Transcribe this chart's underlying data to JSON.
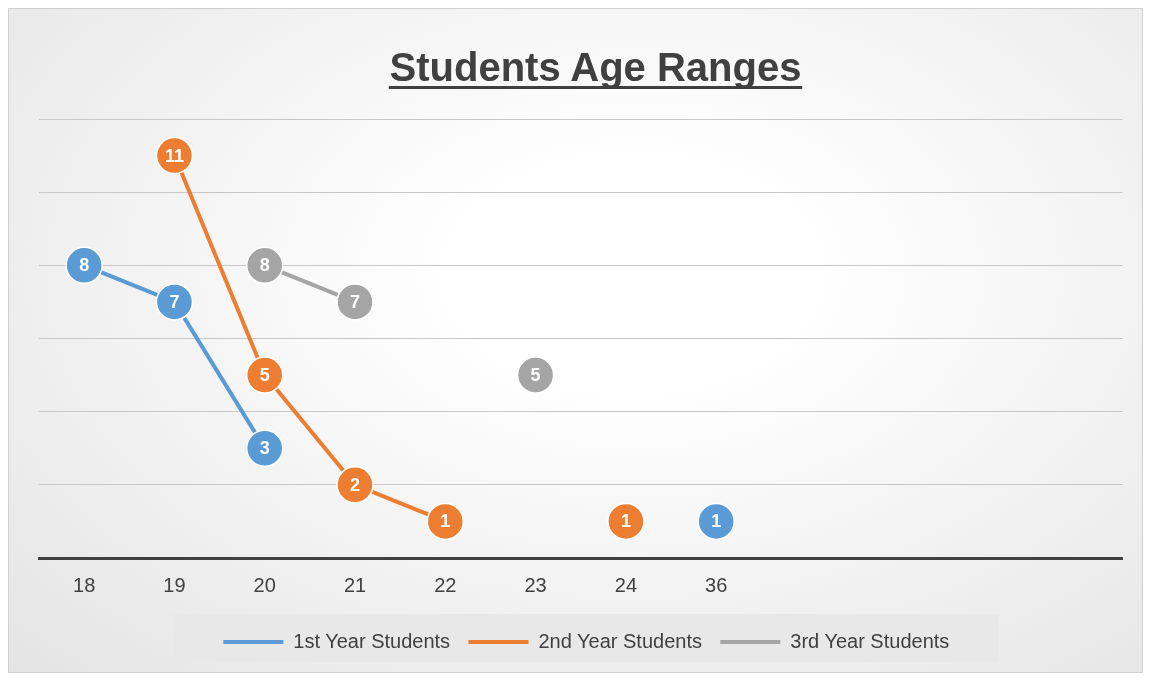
{
  "chart_data": {
    "type": "line",
    "title": "Students Age Ranges",
    "categories": [
      "18",
      "19",
      "20",
      "21",
      "22",
      "23",
      "24",
      "36",
      null,
      null,
      null,
      null
    ],
    "series": [
      {
        "name": "1st Year Students",
        "color": "#5b9bd5",
        "values": [
          8,
          7,
          3,
          null,
          null,
          null,
          null,
          1,
          null,
          null,
          null,
          null
        ]
      },
      {
        "name": "2nd Year Students",
        "color": "#ed7d31",
        "values": [
          null,
          11,
          5,
          2,
          1,
          null,
          1,
          null,
          null,
          null,
          null,
          null
        ]
      },
      {
        "name": "3rd Year Students",
        "color": "#a5a5a5",
        "values": [
          null,
          null,
          8,
          7,
          null,
          5,
          null,
          null,
          null,
          null,
          null,
          null
        ]
      }
    ],
    "ylim": [
      0,
      12
    ],
    "yticks": [
      {
        "value": 0,
        "label": null
      },
      {
        "value": 2,
        "label": null
      },
      {
        "value": 4,
        "label": null
      },
      {
        "value": 6,
        "label": null
      },
      {
        "value": 8,
        "label": null
      },
      {
        "value": 10,
        "label": null
      },
      {
        "value": 12,
        "label": null
      }
    ],
    "tick_labels": "x",
    "grid": "y",
    "legend": "bottom",
    "marker": "circle",
    "line_style": "solid",
    "data_labels": true
  }
}
